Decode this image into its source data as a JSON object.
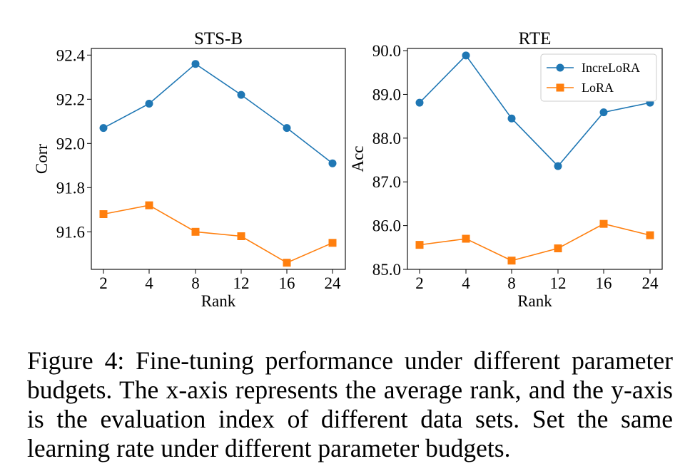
{
  "chart_data": [
    {
      "type": "line",
      "title": "STS-B",
      "xlabel": "Rank",
      "ylabel": "Corr",
      "categories": [
        "2",
        "4",
        "8",
        "12",
        "16",
        "24"
      ],
      "ylim": [
        91.43,
        92.43
      ],
      "yticks": [
        "91.6",
        "91.8",
        "92.0",
        "92.2",
        "92.4"
      ],
      "yticks_values": [
        91.6,
        91.8,
        92.0,
        92.2,
        92.4
      ],
      "grid": false,
      "series": [
        {
          "name": "IncreLoRA",
          "color": "#1f77b4",
          "marker": "circle",
          "values": [
            92.07,
            92.18,
            92.36,
            92.22,
            92.07,
            91.91
          ]
        },
        {
          "name": "LoRA",
          "color": "#ff7f0e",
          "marker": "square",
          "values": [
            91.68,
            91.72,
            91.6,
            91.58,
            91.46,
            91.55
          ]
        }
      ]
    },
    {
      "type": "line",
      "title": "RTE",
      "xlabel": "Rank",
      "ylabel": "Acc",
      "categories": [
        "2",
        "4",
        "8",
        "12",
        "16",
        "24"
      ],
      "ylim": [
        85.0,
        90.05
      ],
      "yticks": [
        "85.0",
        "86.0",
        "87.0",
        "88.0",
        "89.0",
        "90.0"
      ],
      "yticks_values": [
        85.0,
        86.0,
        87.0,
        88.0,
        89.0,
        90.0
      ],
      "grid": false,
      "legend": "top-right",
      "legend_labels": [
        "IncreLoRA",
        "LoRA"
      ],
      "series": [
        {
          "name": "IncreLoRA",
          "color": "#1f77b4",
          "marker": "circle",
          "values": [
            88.81,
            89.89,
            88.45,
            87.36,
            88.59,
            88.81
          ]
        },
        {
          "name": "LoRA",
          "color": "#ff7f0e",
          "marker": "square",
          "values": [
            85.56,
            85.7,
            85.2,
            85.48,
            86.04,
            85.78
          ]
        }
      ]
    }
  ],
  "caption": "Figure 4: Fine-tuning performance under different parameter budgets. The x-axis represents the average rank, and the y-axis is the evaluation index of different data sets. Set the same learning rate under different parameter budgets."
}
